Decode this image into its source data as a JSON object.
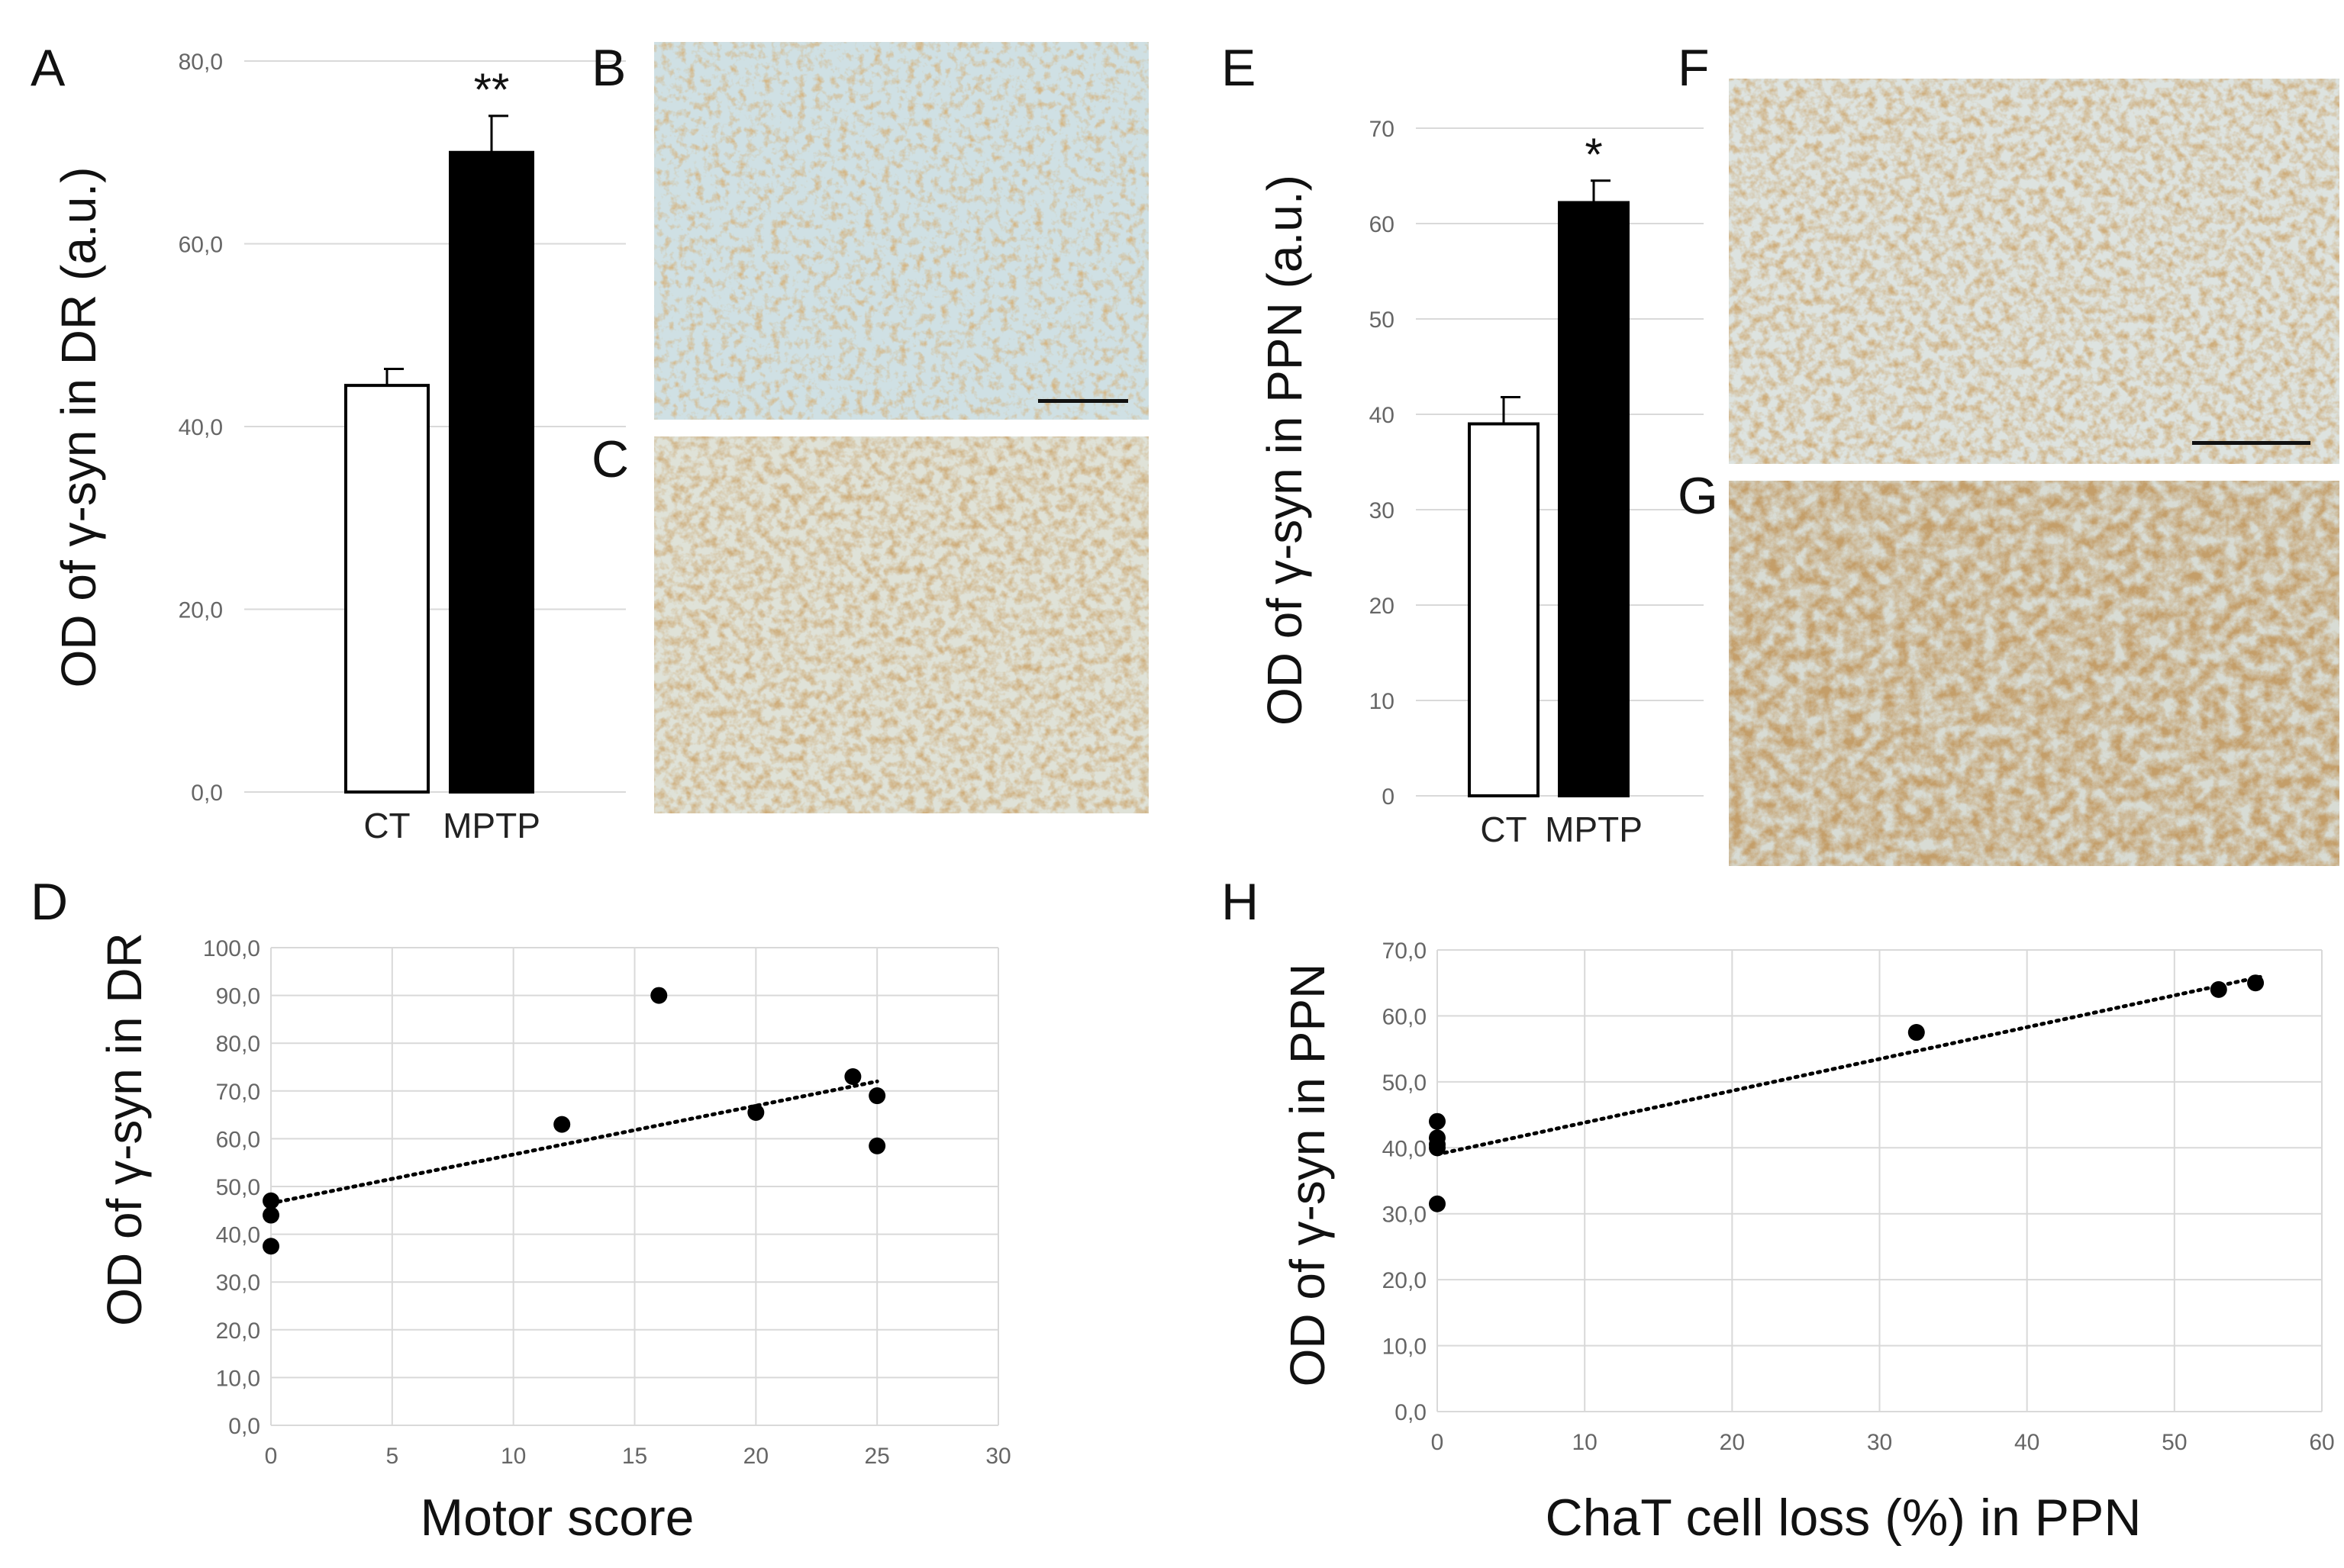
{
  "panels": {
    "A": "A",
    "B": "B",
    "C": "C",
    "D": "D",
    "E": "E",
    "F": "F",
    "G": "G",
    "H": "H"
  },
  "colors": {
    "bar_ct": "#ffffff",
    "bar_mptp": "#000000",
    "grid": "#d9d9d9",
    "point": "#000000"
  },
  "chart_data": [
    {
      "id": "A",
      "type": "bar",
      "title": "",
      "ylabel": "OD of γ-syn in DR (a.u.)",
      "xlabel": "",
      "categories": [
        "CT",
        "MPTP"
      ],
      "values": [
        44.5,
        70.0
      ],
      "errors": [
        1.8,
        4.0
      ],
      "significance": [
        "",
        "**"
      ],
      "ylim": [
        0,
        80
      ],
      "yticks": [
        0,
        20,
        40,
        60,
        80
      ],
      "ytick_labels": [
        "0,0",
        "20,0",
        "40,0",
        "60,0",
        "80,0"
      ],
      "grid": true
    },
    {
      "id": "E",
      "type": "bar",
      "title": "",
      "ylabel": "OD of γ-syn in PPN (a.u.)",
      "xlabel": "",
      "categories": [
        "CT",
        "MPTP"
      ],
      "values": [
        39.0,
        62.2
      ],
      "errors": [
        2.8,
        2.3
      ],
      "significance": [
        "",
        "*"
      ],
      "ylim": [
        0,
        70
      ],
      "yticks": [
        0,
        10,
        20,
        30,
        40,
        50,
        60,
        70
      ],
      "ytick_labels": [
        "0",
        "10",
        "20",
        "30",
        "40",
        "50",
        "60",
        "70"
      ],
      "grid": true
    },
    {
      "id": "D",
      "type": "scatter",
      "title": "",
      "ylabel": "OD of γ-syn in DR",
      "xlabel": "Motor score",
      "x": [
        0,
        0,
        0,
        12,
        16,
        20,
        24,
        25,
        25
      ],
      "y": [
        47,
        44,
        37.5,
        63,
        90,
        65.5,
        73,
        69,
        58.5
      ],
      "trendline": {
        "style": "dotted",
        "x": [
          0,
          25
        ],
        "y": [
          46.5,
          72
        ]
      },
      "xlim": [
        0,
        30
      ],
      "ylim": [
        0,
        100
      ],
      "xticks": [
        0,
        5,
        10,
        15,
        20,
        25,
        30
      ],
      "xtick_labels": [
        "0",
        "5",
        "10",
        "15",
        "20",
        "25",
        "30"
      ],
      "yticks": [
        0,
        10,
        20,
        30,
        40,
        50,
        60,
        70,
        80,
        90,
        100
      ],
      "ytick_labels": [
        "0,0",
        "10,0",
        "20,0",
        "30,0",
        "40,0",
        "50,0",
        "60,0",
        "70,0",
        "80,0",
        "90,0",
        "100,0"
      ],
      "grid": true
    },
    {
      "id": "H",
      "type": "scatter",
      "title": "",
      "ylabel": "OD of γ-syn in PPN",
      "xlabel": "ChaT cell loss (%) in PPN",
      "x": [
        0,
        0,
        0,
        0,
        0,
        32.5,
        53,
        55.5
      ],
      "y": [
        44,
        41.5,
        40.5,
        40,
        31.5,
        57.5,
        64,
        65
      ],
      "trendline": {
        "style": "dotted",
        "x": [
          0,
          56
        ],
        "y": [
          39,
          66
        ]
      },
      "xlim": [
        0,
        60
      ],
      "ylim": [
        0,
        70
      ],
      "xticks": [
        0,
        10,
        20,
        30,
        40,
        50,
        60
      ],
      "xtick_labels": [
        "0",
        "10",
        "20",
        "30",
        "40",
        "50",
        "60"
      ],
      "yticks": [
        0,
        10,
        20,
        30,
        40,
        50,
        60,
        70
      ],
      "ytick_labels": [
        "0,0",
        "10,0",
        "20,0",
        "30,0",
        "40,0",
        "50,0",
        "60,0",
        "70,0"
      ],
      "grid": true
    }
  ]
}
